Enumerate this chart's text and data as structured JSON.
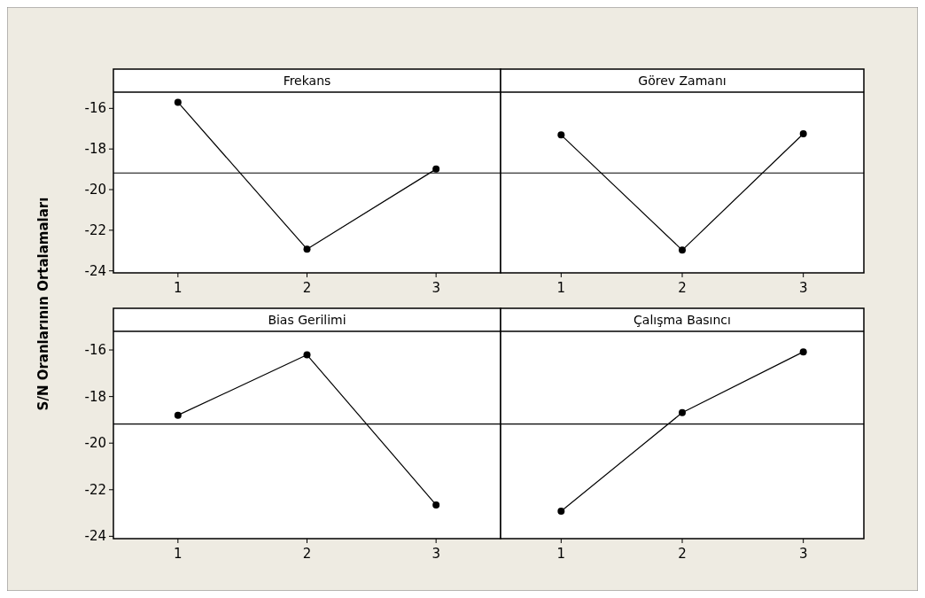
{
  "chart_data": [
    {
      "type": "line",
      "title": "Frekans",
      "ylabel": "S/N Oranlarının Ortalamaları",
      "categories": [
        "1",
        "2",
        "3"
      ],
      "series": [
        {
          "color": "#000000",
          "values": [
            -15.7,
            -22.93,
            -18.99
          ]
        }
      ],
      "ylim": [
        -24.1,
        -15.2
      ],
      "yticks": [
        -24,
        -22,
        -20,
        -18,
        -16
      ],
      "ref_lines": [
        {
          "axis": "y",
          "value": -19.18,
          "color": "#000000"
        }
      ],
      "marker": "circle",
      "line_style": "solid"
    },
    {
      "type": "line",
      "title": "Görev Zamanı",
      "categories": [
        "1",
        "2",
        "3"
      ],
      "series": [
        {
          "color": "#000000",
          "values": [
            -17.31,
            -22.98,
            -17.25
          ]
        }
      ],
      "ylim": [
        -24.1,
        -15.2
      ],
      "yticks": [
        -24,
        -22,
        -20,
        -18,
        -16
      ],
      "ref_lines": [
        {
          "axis": "y",
          "value": -19.18,
          "color": "#000000"
        }
      ],
      "marker": "circle",
      "line_style": "solid",
      "tick_labels": "x"
    },
    {
      "type": "line",
      "title": "Bias Gerilimi",
      "categories": [
        "1",
        "2",
        "3"
      ],
      "series": [
        {
          "color": "#000000",
          "values": [
            -18.8,
            -16.21,
            -22.65
          ]
        }
      ],
      "ylim": [
        -24.1,
        -15.2
      ],
      "yticks": [
        -24,
        -22,
        -20,
        -18,
        -16
      ],
      "ref_lines": [
        {
          "axis": "y",
          "value": -19.18,
          "color": "#000000"
        }
      ],
      "marker": "circle",
      "line_style": "solid"
    },
    {
      "type": "line",
      "title": "Çalışma Basıncı",
      "categories": [
        "1",
        "2",
        "3"
      ],
      "series": [
        {
          "color": "#000000",
          "values": [
            -22.92,
            -18.69,
            -16.08
          ]
        }
      ],
      "ylim": [
        -24.1,
        -15.2
      ],
      "yticks": [
        -24,
        -22,
        -20,
        -18,
        -16
      ],
      "ref_lines": [
        {
          "axis": "y",
          "value": -19.18,
          "color": "#000000"
        }
      ],
      "marker": "circle",
      "line_style": "solid",
      "tick_labels": "x"
    }
  ]
}
